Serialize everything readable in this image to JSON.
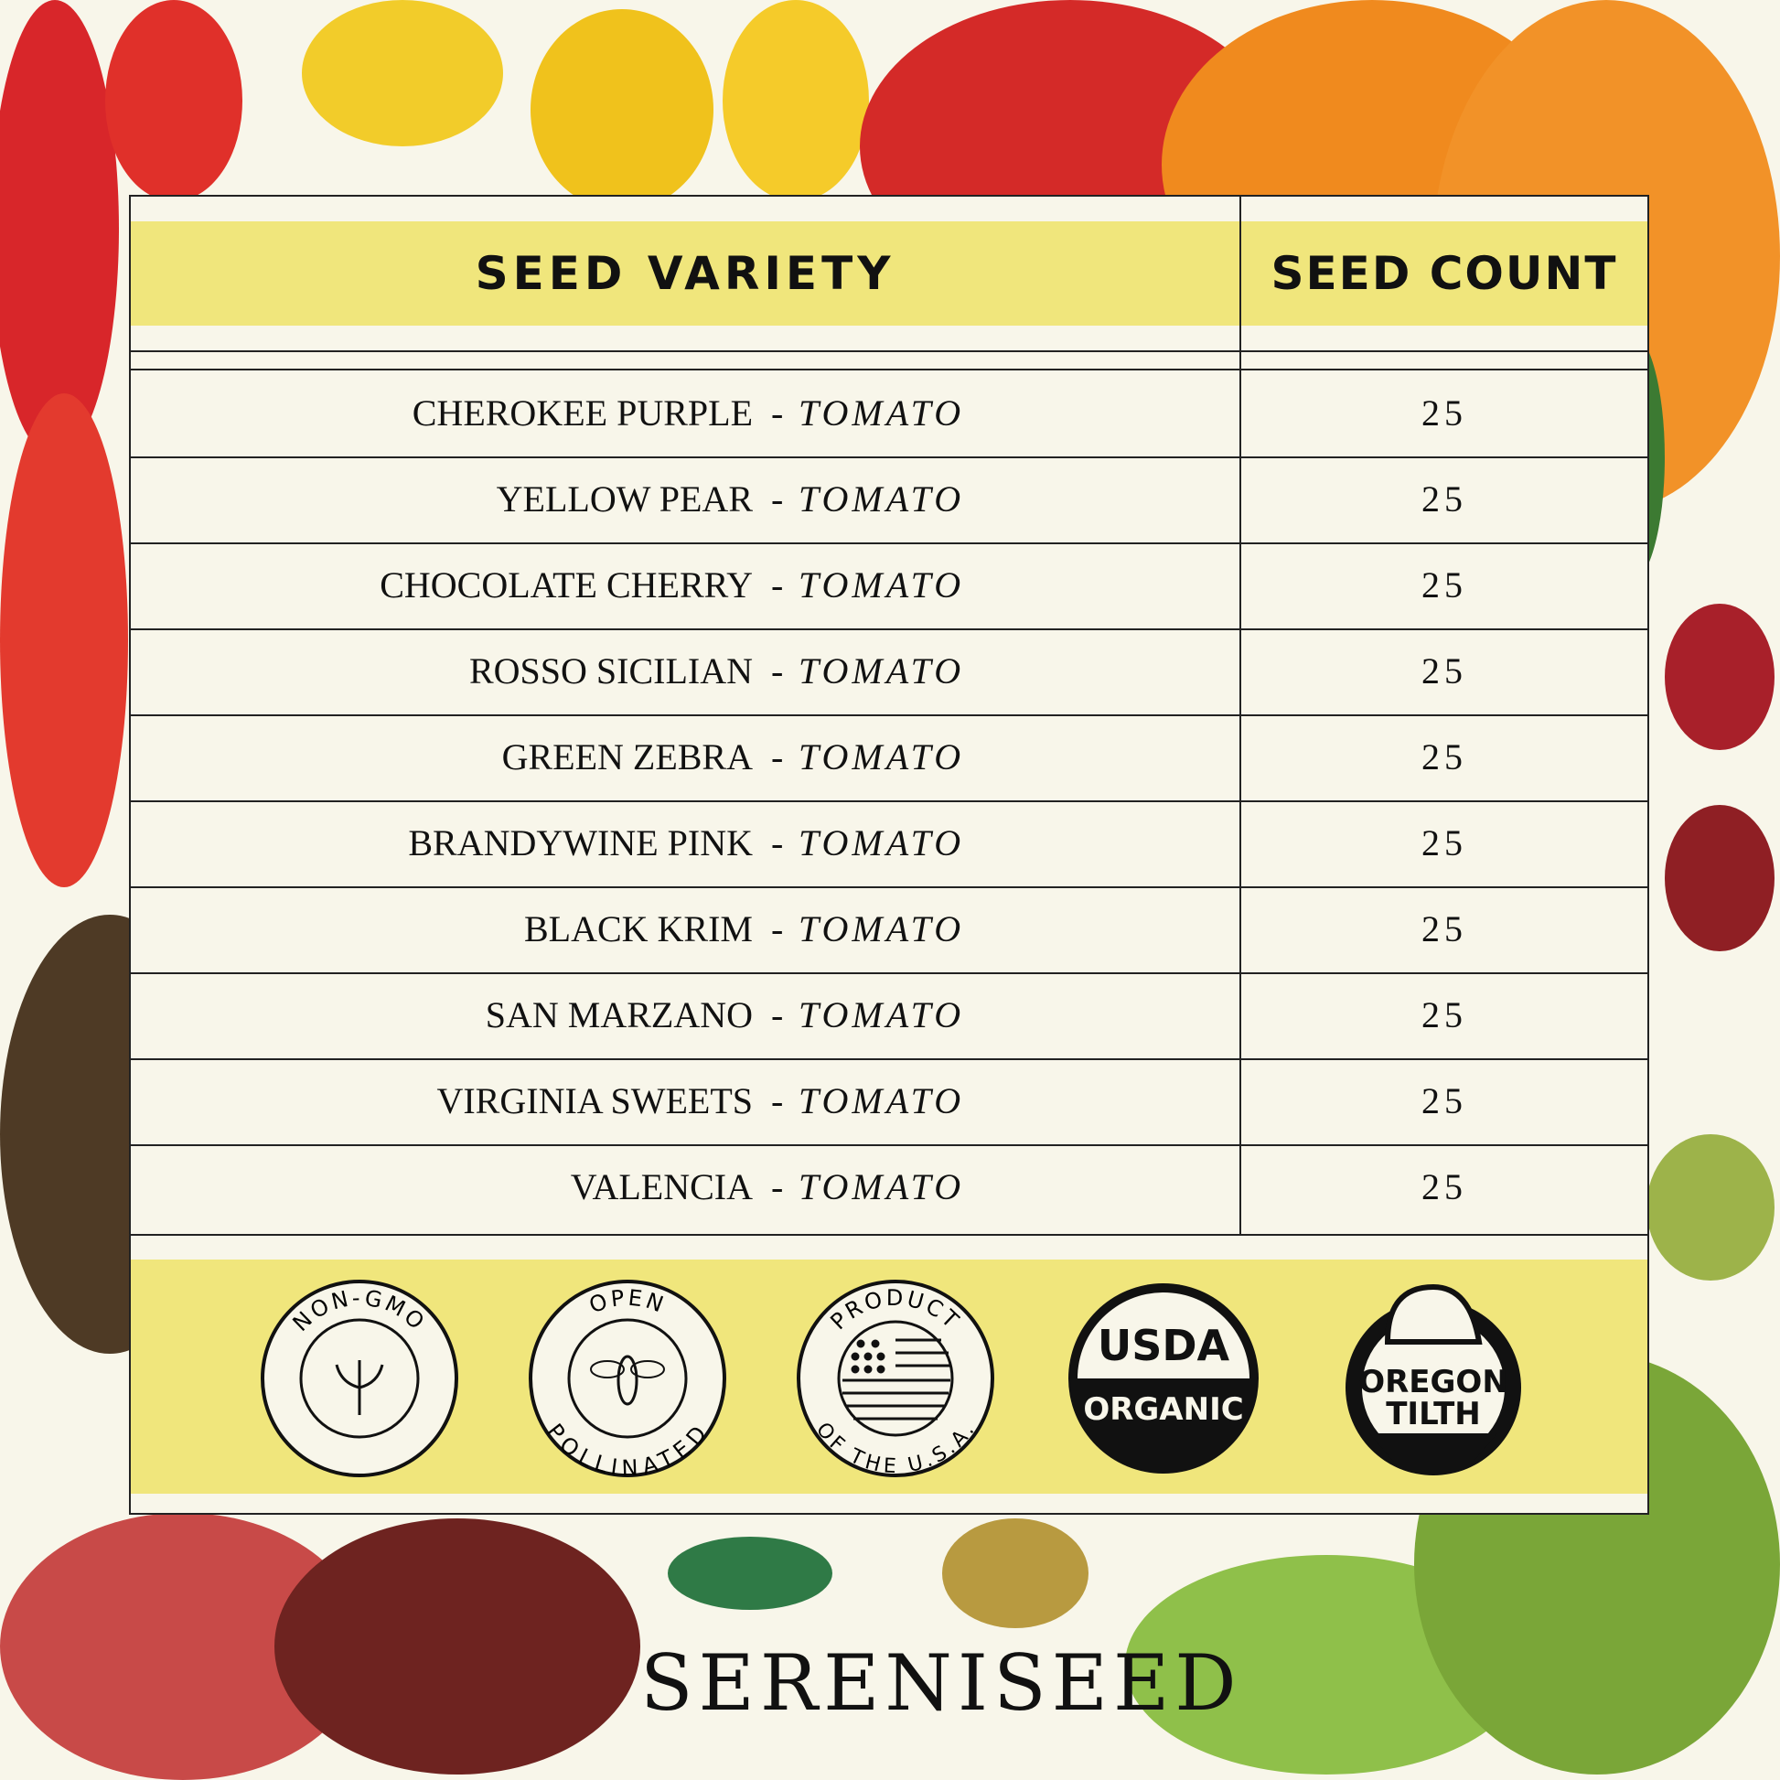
{
  "table": {
    "header_variety": "SEED VARIETY",
    "header_count": "SEED COUNT",
    "rows": [
      {
        "name": "CHEROKEE PURPLE",
        "type": "TOMATO",
        "count": "25"
      },
      {
        "name": "YELLOW PEAR",
        "type": "TOMATO",
        "count": "25"
      },
      {
        "name": "CHOCOLATE CHERRY",
        "type": "TOMATO",
        "count": "25"
      },
      {
        "name": "ROSSO SICILIAN",
        "type": "TOMATO",
        "count": "25"
      },
      {
        "name": "GREEN ZEBRA",
        "type": "TOMATO",
        "count": "25"
      },
      {
        "name": "BRANDYWINE PINK",
        "type": "TOMATO",
        "count": "25"
      },
      {
        "name": "BLACK KRIM",
        "type": "TOMATO",
        "count": "25"
      },
      {
        "name": "SAN MARZANO",
        "type": "TOMATO",
        "count": "25"
      },
      {
        "name": "VIRGINIA SWEETS",
        "type": "TOMATO",
        "count": "25"
      },
      {
        "name": "VALENCIA",
        "type": "TOMATO",
        "count": "25"
      }
    ],
    "separator": "-"
  },
  "badges": {
    "non_gmo": "NON-GMO",
    "open": "OPEN",
    "pollinated": "POLLINATED",
    "product": "PRODUCT",
    "usa": "OF THE U.S.A.",
    "usda": "USDA",
    "organic": "ORGANIC",
    "oregon": "OREGON",
    "tilth": "TILTH"
  },
  "brand": "SERENISEED",
  "colors": {
    "highlight": "#f0e67c",
    "paper": "#f8f6ea",
    "ink": "#111111"
  }
}
